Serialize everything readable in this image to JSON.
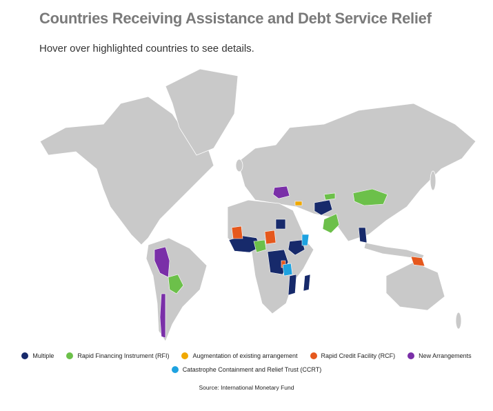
{
  "header": {
    "title": "Countries Receiving Assistance and Debt Service Relief",
    "subtitle": "Hover over highlighted countries to see details."
  },
  "legend": [
    {
      "name": "Multiple",
      "color": "#172a6b"
    },
    {
      "name": "Rapid Financing Instrument (RFI)",
      "color": "#6cc04a"
    },
    {
      "name": "Augmentation of existing arrangement",
      "color": "#f0a800"
    },
    {
      "name": "Rapid Credit Facility (RCF)",
      "color": "#e5581d"
    },
    {
      "name": "New Arrangements",
      "color": "#7a2fa8"
    },
    {
      "name": "Catastrophe Containment and Relief Trust (CCRT)",
      "color": "#1ea2e0"
    }
  ],
  "source": "Source: International Monetary Fund"
}
